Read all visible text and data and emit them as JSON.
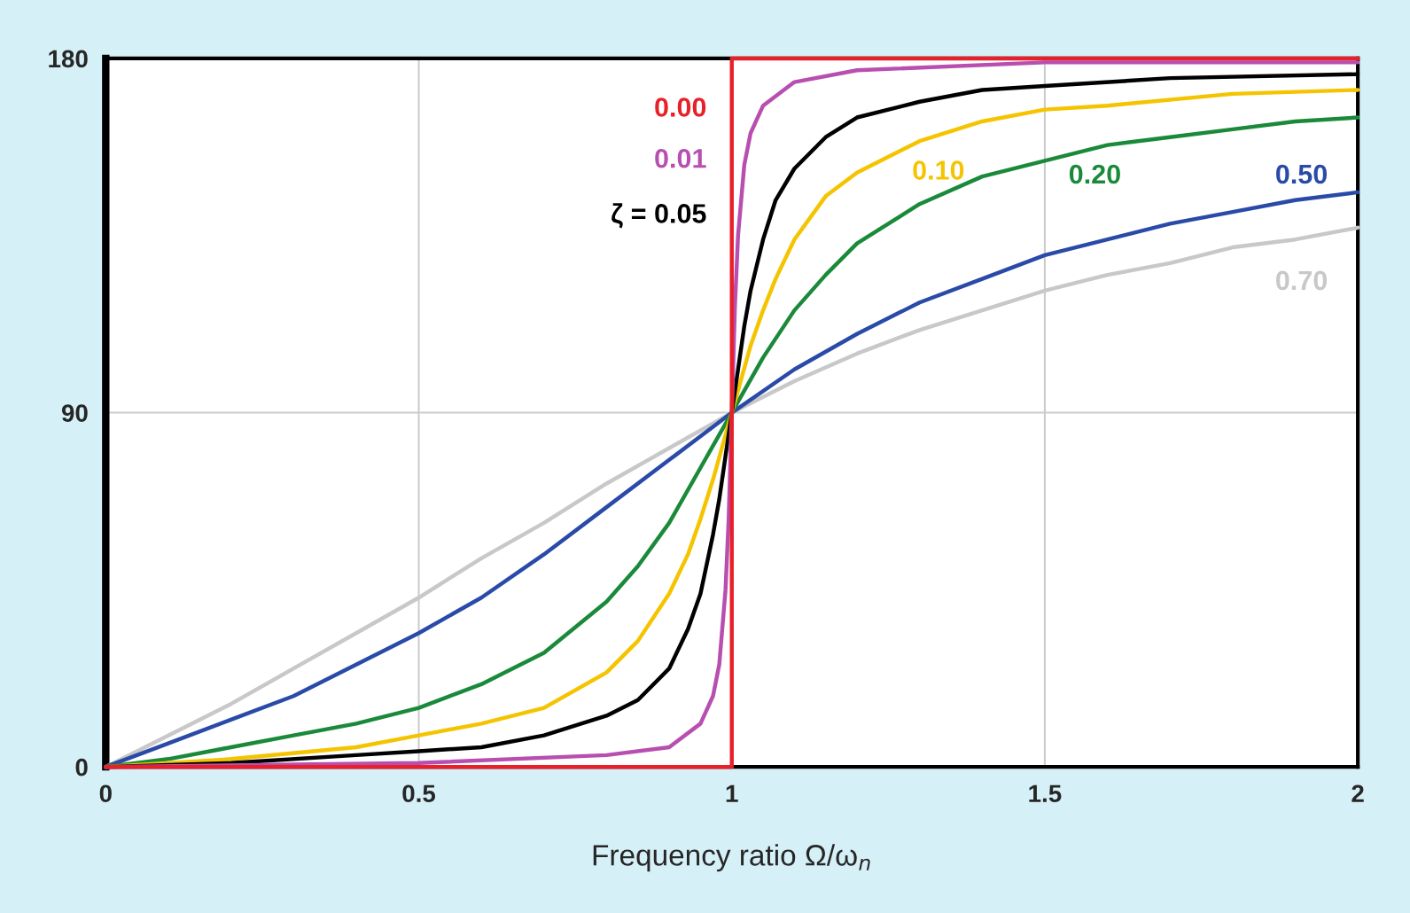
{
  "chart_data": {
    "type": "line",
    "xlabel": "Frequency ratio Ω/ω$_{n}$",
    "xlim": [
      0,
      2
    ],
    "ylim": [
      0,
      180
    ],
    "xticks": [
      0,
      0.5,
      1,
      1.5,
      2
    ],
    "yticks": [
      0,
      90,
      180
    ],
    "grid": true,
    "legend": false,
    "marker": "none",
    "line_style": "solid",
    "series": [
      {
        "name": "0.70",
        "color": "#c8c8c8",
        "x": [
          0,
          0.1,
          0.2,
          0.3,
          0.4,
          0.5,
          0.6,
          0.7,
          0.8,
          0.9,
          1,
          1.1,
          1.2,
          1.3,
          1.4,
          1.5,
          1.6,
          1.7,
          1.8,
          1.9,
          2
        ],
        "values": [
          0,
          8,
          16,
          25,
          34,
          43,
          53,
          62,
          72,
          81,
          90,
          98,
          105,
          111,
          116,
          121,
          125,
          128,
          132,
          134,
          137
        ]
      },
      {
        "name": "0.50",
        "color": "#2a4aa8",
        "x": [
          0,
          0.1,
          0.2,
          0.3,
          0.4,
          0.5,
          0.6,
          0.7,
          0.8,
          0.9,
          1,
          1.1,
          1.2,
          1.3,
          1.4,
          1.5,
          1.6,
          1.7,
          1.8,
          1.9,
          2
        ],
        "values": [
          0,
          6,
          12,
          18,
          26,
          34,
          43,
          54,
          66,
          78,
          90,
          101,
          110,
          118,
          124,
          130,
          134,
          138,
          141,
          144,
          146
        ]
      },
      {
        "name": "0.20",
        "color": "#1a8a3a",
        "x": [
          0,
          0.1,
          0.2,
          0.3,
          0.4,
          0.5,
          0.6,
          0.7,
          0.8,
          0.85,
          0.9,
          0.95,
          1,
          1.05,
          1.1,
          1.15,
          1.2,
          1.3,
          1.4,
          1.5,
          1.6,
          1.7,
          1.8,
          1.9,
          2
        ],
        "values": [
          0,
          2,
          5,
          8,
          11,
          15,
          21,
          29,
          42,
          51,
          62,
          76,
          90,
          104,
          116,
          125,
          133,
          143,
          150,
          154,
          158,
          160,
          162,
          164,
          165
        ]
      },
      {
        "name": "0.10",
        "color": "#f5c400",
        "x": [
          0,
          0.2,
          0.4,
          0.5,
          0.6,
          0.7,
          0.8,
          0.85,
          0.9,
          0.93,
          0.95,
          0.97,
          1,
          1.03,
          1.05,
          1.07,
          1.1,
          1.15,
          1.2,
          1.3,
          1.4,
          1.5,
          1.6,
          1.8,
          2
        ],
        "values": [
          0,
          2,
          5,
          8,
          11,
          15,
          24,
          32,
          44,
          54,
          63,
          73,
          90,
          107,
          116,
          124,
          134,
          145,
          151,
          159,
          164,
          167,
          168,
          171,
          172
        ]
      },
      {
        "name": "ζ = 0.05",
        "color": "#000000",
        "x": [
          0,
          0.2,
          0.4,
          0.5,
          0.6,
          0.7,
          0.8,
          0.85,
          0.9,
          0.93,
          0.95,
          0.97,
          0.98,
          0.99,
          1,
          1.01,
          1.02,
          1.03,
          1.05,
          1.07,
          1.1,
          1.15,
          1.2,
          1.3,
          1.4,
          1.5,
          1.7,
          2
        ],
        "values": [
          0,
          1,
          3,
          4,
          5,
          8,
          13,
          17,
          25,
          35,
          44,
          59,
          68,
          79,
          90,
          101,
          112,
          121,
          134,
          144,
          152,
          160,
          165,
          169,
          172,
          173,
          175,
          176
        ]
      },
      {
        "name": "0.01",
        "color": "#b84fb0",
        "x": [
          0,
          0.5,
          0.8,
          0.9,
          0.95,
          0.97,
          0.98,
          0.99,
          0.995,
          1,
          1.005,
          1.01,
          1.02,
          1.03,
          1.05,
          1.1,
          1.2,
          1.5,
          2
        ],
        "values": [
          0,
          1,
          3,
          5,
          11,
          18,
          26,
          45,
          63,
          90,
          117,
          135,
          153,
          161,
          168,
          174,
          177,
          179,
          179
        ]
      },
      {
        "name": "0.00",
        "color": "#e8202a",
        "x": [
          0,
          1,
          1,
          2
        ],
        "values": [
          0,
          0,
          180,
          180
        ]
      }
    ]
  }
}
